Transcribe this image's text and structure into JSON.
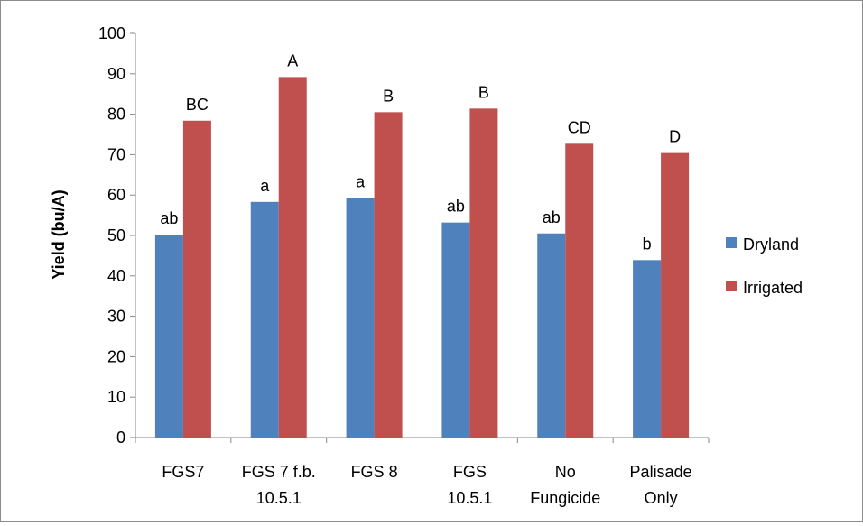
{
  "chart_data": {
    "type": "bar",
    "title": "",
    "xlabel": "",
    "ylabel": "Yield (bu/A)",
    "ylim": [
      0,
      100
    ],
    "y_ticks": [
      0,
      10,
      20,
      30,
      40,
      50,
      60,
      70,
      80,
      90,
      100
    ],
    "grid": false,
    "legend_position": "right",
    "categories": [
      [
        "FGS7"
      ],
      [
        "FGS 7 f.b.",
        "10.5.1"
      ],
      [
        "FGS 8"
      ],
      [
        "FGS",
        "10.5.1"
      ],
      [
        "No",
        "Fungicide"
      ],
      [
        "Palisade",
        "Only"
      ]
    ],
    "series": [
      {
        "name": "Dryland",
        "color": "#4f81bd",
        "values": [
          50.2,
          58.3,
          59.3,
          53.2,
          50.5,
          43.9
        ],
        "labels": [
          "ab",
          "a",
          "a",
          "ab",
          "ab",
          "b"
        ]
      },
      {
        "name": "Irrigated",
        "color": "#c0504d",
        "values": [
          78.4,
          89.2,
          80.5,
          81.4,
          72.7,
          70.4
        ],
        "labels": [
          "BC",
          "A",
          "B",
          "B",
          "CD",
          "D"
        ]
      }
    ]
  }
}
